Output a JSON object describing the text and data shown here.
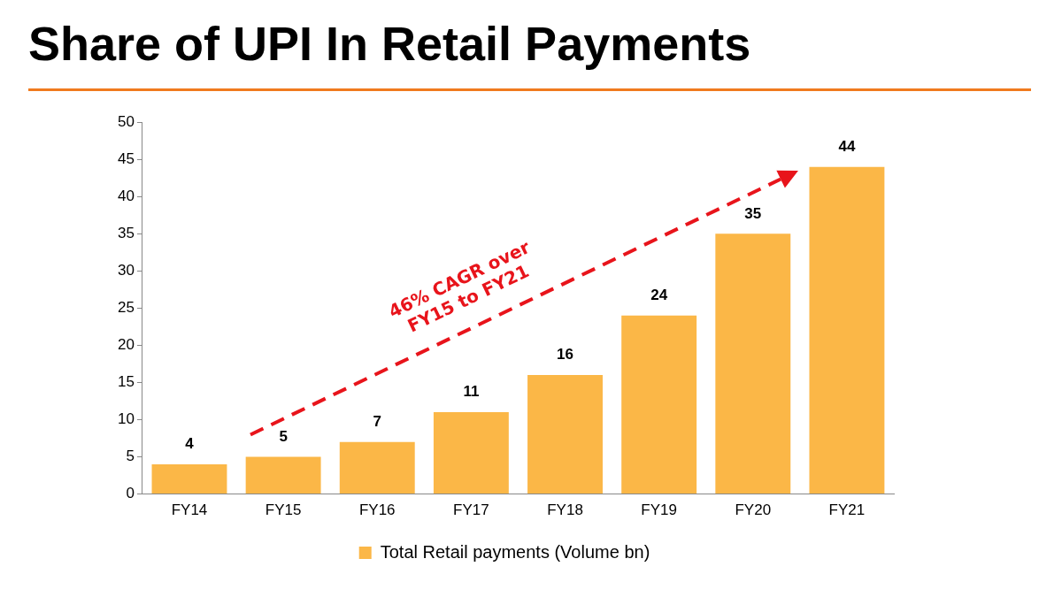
{
  "chart_data": {
    "type": "bar",
    "title": "Share of UPI In Retail Payments",
    "categories": [
      "FY14",
      "FY15",
      "FY16",
      "FY17",
      "FY18",
      "FY19",
      "FY20",
      "FY21"
    ],
    "series": [
      {
        "name": "Total Retail payments (Volume bn)",
        "color": "#fbb747",
        "values": [
          4,
          5,
          7,
          11,
          16,
          24,
          35,
          44
        ]
      }
    ],
    "ylim": [
      0,
      50
    ],
    "yticks": [
      0,
      5,
      10,
      15,
      20,
      25,
      30,
      35,
      40,
      45,
      50
    ],
    "grid": false,
    "legend": "bottom",
    "data_labels": true,
    "annotations": [
      "46% CAGR over FY15 to FY21"
    ]
  }
}
